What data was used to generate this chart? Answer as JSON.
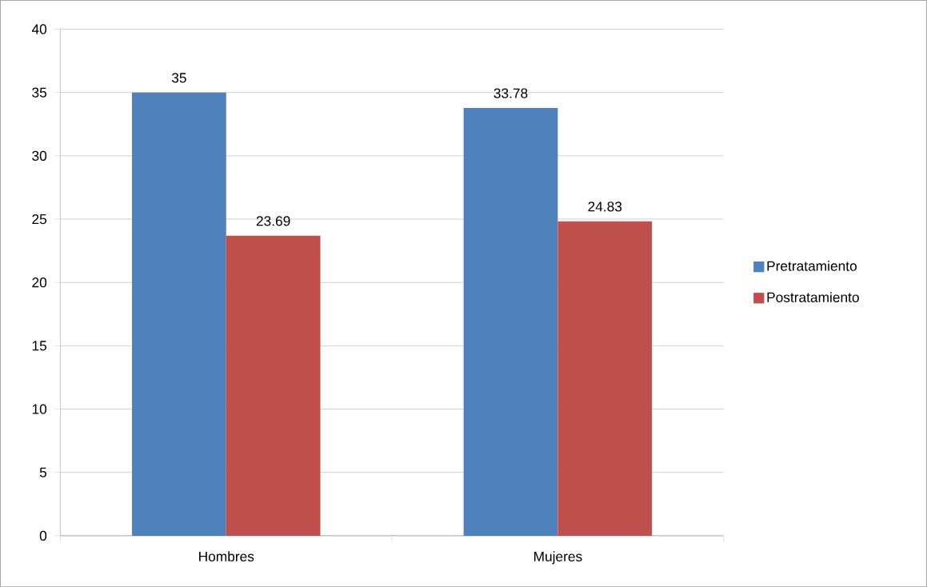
{
  "chart_data": {
    "type": "bar",
    "categories": [
      "Hombres",
      "Mujeres"
    ],
    "series": [
      {
        "name": "Pretratamiento",
        "color": "#4f81bd",
        "values": [
          35,
          33.78
        ],
        "value_labels": [
          "35",
          "33.78"
        ]
      },
      {
        "name": "Postratamiento",
        "color": "#c0504d",
        "values": [
          23.69,
          24.83
        ],
        "value_labels": [
          "23.69",
          "24.83"
        ]
      }
    ],
    "ylim": [
      0,
      40
    ],
    "yticks": [
      0,
      5,
      10,
      15,
      20,
      25,
      30,
      35,
      40
    ],
    "grid": "y",
    "legend": "right"
  }
}
